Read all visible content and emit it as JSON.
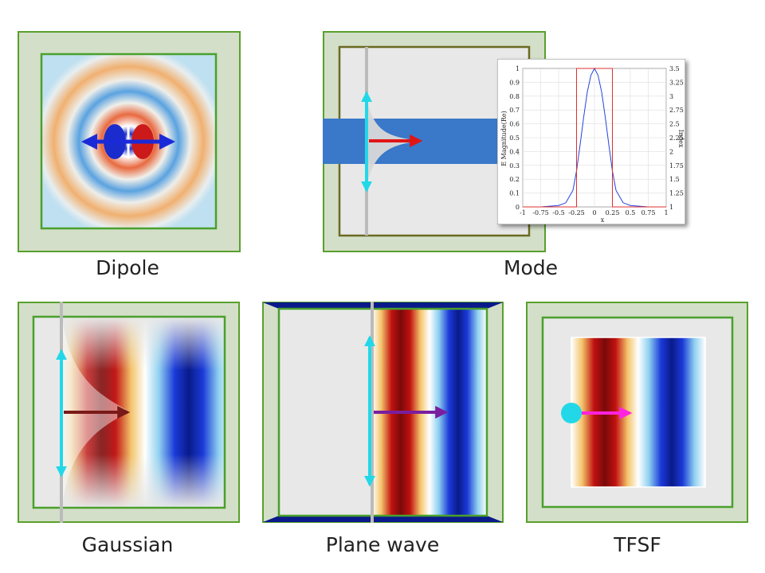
{
  "colors": {
    "pml_fill": "#d3dfc8",
    "pml_border": "#5aa02c",
    "sim_region_border": "#4aa02c",
    "mode_region_border": "#6b6a22",
    "waveguide": "#3a78c9",
    "arrow_blue": "#1a2ad8",
    "arrow_red": "#e01515",
    "arrow_cyan": "#22d8e8",
    "arrow_purple": "#7a1ea0",
    "arrow_dark_red": "#7a1a18",
    "arrow_magenta": "#ff22e0",
    "source_plane": "#bbbbbb",
    "plot_mode_curve": "#2244dd",
    "plot_index_curve": "#e03030"
  },
  "labels": {
    "dipole": "Dipole",
    "mode": "Mode",
    "gaussian": "Gaussian",
    "plane_wave": "Plane wave",
    "tfsf": "TFSF"
  },
  "icons": {
    "dipole_arrow": "double-headed-arrow-icon",
    "polarization_arrow": "double-headed-vertical-arrow-icon",
    "propagation_arrow": "right-arrow-icon",
    "tfsf_source_dot": "circle-dot-icon"
  },
  "chart_data": {
    "type": "line",
    "xlabel": "x",
    "ylabel": "E Magnitude(Re)",
    "y2label": "Index",
    "xlim": [
      -1,
      1
    ],
    "ylim": [
      0,
      1
    ],
    "y2lim": [
      1,
      3.5
    ],
    "x_ticks": [
      "-1",
      "-0.75",
      "-0.5",
      "-0.25",
      "0",
      "0.25",
      "0.5",
      "0.75",
      "1"
    ],
    "y_ticks": [
      "0",
      "0.1",
      "0.2",
      "0.3",
      "0.4",
      "0.5",
      "0.6",
      "0.7",
      "0.8",
      "0.9",
      "1"
    ],
    "y2_ticks": [
      "1",
      "1.25",
      "1.5",
      "1.75",
      "2",
      "2.25",
      "2.5",
      "2.75",
      "3",
      "3.25",
      "3.5"
    ],
    "grid": true,
    "series": [
      {
        "axis": "left",
        "x": [
          -1,
          -0.75,
          -0.5,
          -0.4,
          -0.3,
          -0.25,
          -0.2,
          -0.15,
          -0.1,
          -0.05,
          0,
          0.05,
          0.1,
          0.15,
          0.2,
          0.25,
          0.3,
          0.4,
          0.5,
          0.75,
          1
        ],
        "y": [
          0,
          0,
          0.01,
          0.03,
          0.12,
          0.26,
          0.45,
          0.65,
          0.83,
          0.95,
          1.0,
          0.95,
          0.83,
          0.65,
          0.45,
          0.26,
          0.12,
          0.03,
          0.01,
          0,
          0
        ]
      },
      {
        "axis": "right",
        "x": [
          -1,
          -0.25,
          -0.25,
          0.25,
          0.25,
          1
        ],
        "y": [
          1,
          1,
          3.5,
          3.5,
          1,
          1
        ]
      }
    ]
  }
}
